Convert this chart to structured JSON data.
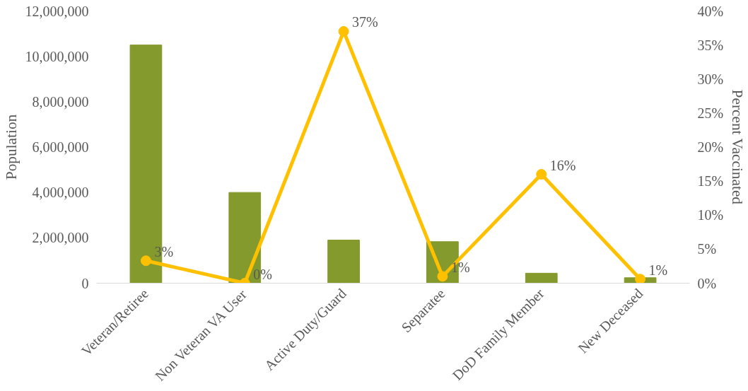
{
  "chart_data": {
    "type": "bar",
    "ylabel": "Population",
    "y2label": "Percent Vaccinated",
    "categories": [
      "Veteran/Retiree",
      "Non Veteran VA User",
      "Active Duty/Guard",
      "Separatee",
      "DoD Family Member",
      "New Deceased"
    ],
    "series": [
      {
        "color": "#849a2c",
        "values": [
          10500000,
          4000000,
          1900000,
          1830000,
          440000,
          240000
        ]
      },
      {
        "type": "line",
        "axis": "y2",
        "color": "#ffc000",
        "marker": "circle",
        "values": [
          3.3,
          0,
          37,
          1,
          16,
          0.6
        ],
        "value_labels": [
          "3%",
          "0%",
          "37%",
          "1%",
          "16%",
          "1%"
        ]
      }
    ],
    "ylim": [
      0,
      12000000
    ],
    "yticks": [
      {
        "value": 0,
        "label": "0"
      },
      {
        "value": 2000000,
        "label": "2,000,000"
      },
      {
        "value": 4000000,
        "label": "4,000,000"
      },
      {
        "value": 6000000,
        "label": "6,000,000"
      },
      {
        "value": 8000000,
        "label": "8,000,000"
      },
      {
        "value": 10000000,
        "label": "10,000,000"
      },
      {
        "value": 12000000,
        "label": "12,000,000"
      }
    ],
    "y2lim": [
      0,
      40
    ],
    "y2ticks": [
      {
        "value": 0,
        "label": "0%"
      },
      {
        "value": 5,
        "label": "5%"
      },
      {
        "value": 10,
        "label": "10%"
      },
      {
        "value": 15,
        "label": "15%"
      },
      {
        "value": 20,
        "label": "20%"
      },
      {
        "value": 25,
        "label": "25%"
      },
      {
        "value": 30,
        "label": "30%"
      },
      {
        "value": 35,
        "label": "35%"
      },
      {
        "value": 40,
        "label": "40%"
      }
    ],
    "grid": false
  }
}
